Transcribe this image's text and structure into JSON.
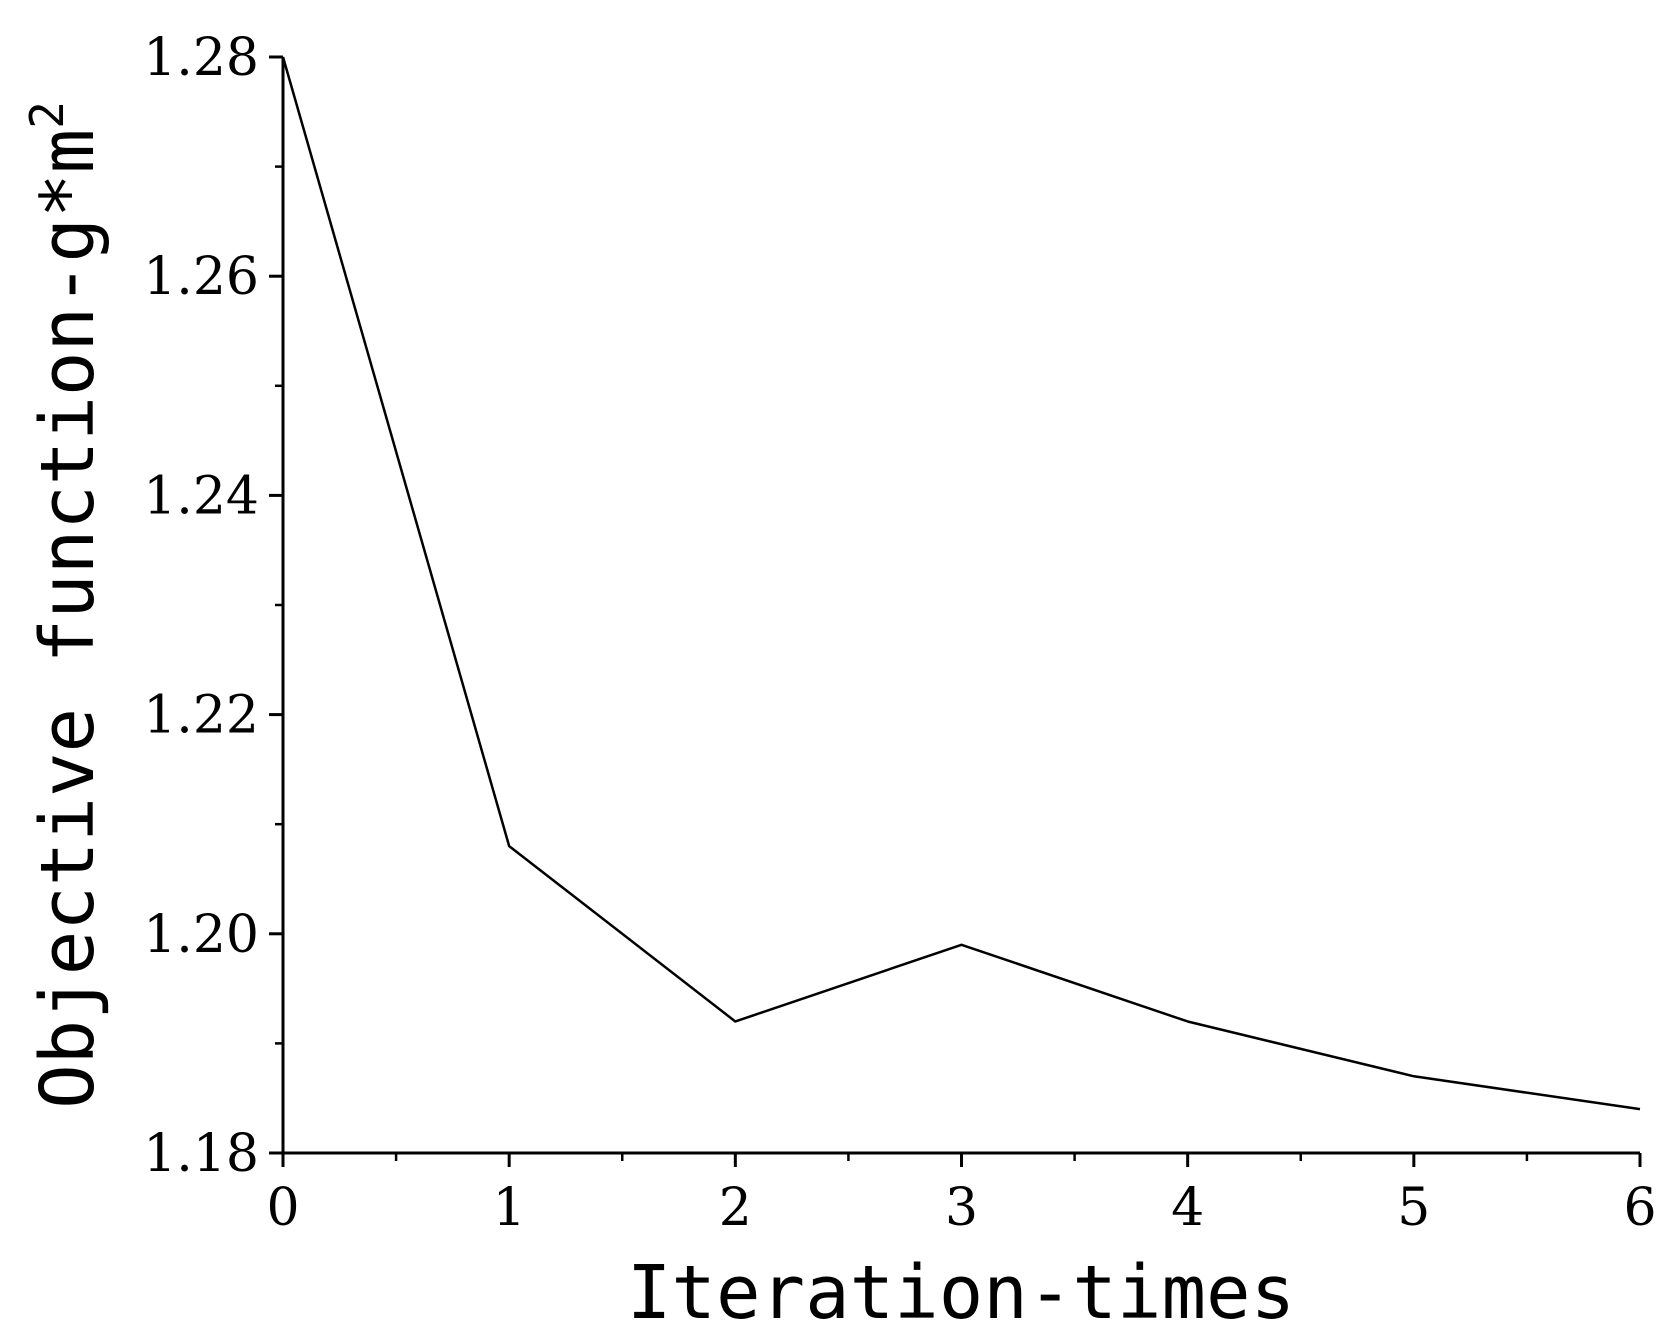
{
  "chart_data": {
    "type": "line",
    "title": "",
    "xlabel": "Iteration-times",
    "ylabel_main": "Objective function-g*m",
    "ylabel_superscript": "2",
    "xlim": [
      0,
      6
    ],
    "ylim": [
      1.18,
      1.28
    ],
    "x_ticks": [
      0,
      1,
      2,
      3,
      4,
      5,
      6
    ],
    "x_tick_labels": [
      "0",
      "1",
      "2",
      "3",
      "4",
      "5",
      "6"
    ],
    "y_ticks": [
      1.18,
      1.2,
      1.22,
      1.24,
      1.26,
      1.28
    ],
    "y_tick_labels": [
      "1.18",
      "1.20",
      "1.22",
      "1.24",
      "1.26",
      "1.28"
    ],
    "grid": false,
    "legend": "none",
    "series": [
      {
        "x": [
          0,
          1,
          2,
          3,
          4,
          5,
          6
        ],
        "values": [
          1.28,
          1.208,
          1.192,
          1.199,
          1.192,
          1.187,
          1.184
        ],
        "color": "#000000"
      }
    ]
  }
}
